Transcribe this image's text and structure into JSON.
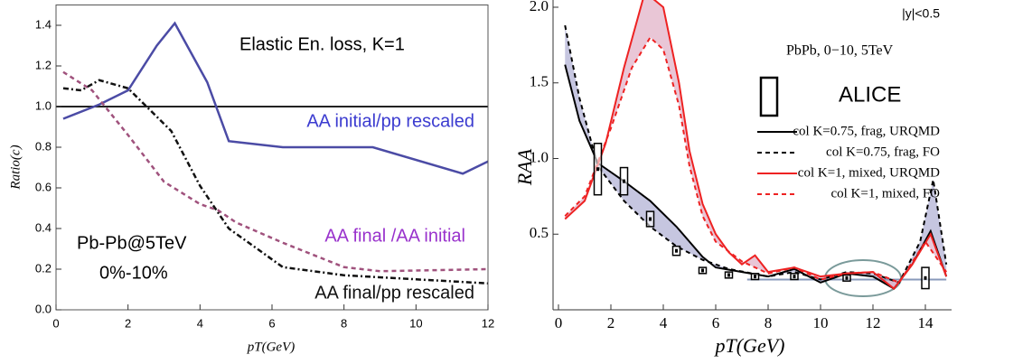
{
  "chart_data": [
    {
      "type": "line",
      "xlabel": "pT(GeV)",
      "ylabel": "Ratio(c)",
      "annotations": [
        "Elastic En. loss, K=1",
        "Pb-Pb@5TeV",
        "0%-10%"
      ],
      "xlim": [
        0,
        12
      ],
      "ylim": [
        0,
        1.5
      ],
      "xticks": [
        0,
        2,
        4,
        6,
        8,
        10,
        12
      ],
      "yticks": [
        {
          "value": 0,
          "label": "0.0"
        },
        0.2,
        0.4,
        0.6,
        0.8,
        {
          "value": 1,
          "label": "1.0"
        },
        1.2,
        1.4
      ],
      "hline": 1,
      "series": [
        {
          "name": "AA initial/pp rescaled",
          "color": "#4b4ba5",
          "label_color": "#3c3cd0",
          "linestyle": "solid",
          "x": [
            0.2,
            1.2,
            2,
            2.8,
            3.3,
            4.2,
            4.8,
            6.3,
            8.8,
            11.3,
            12
          ],
          "values": [
            0.94,
            1.01,
            1.08,
            1.3,
            1.41,
            1.12,
            0.83,
            0.8,
            0.8,
            0.67,
            0.73
          ]
        },
        {
          "name": "AA final /AA initial",
          "color": "#a0527d",
          "label_color": "#9932cc",
          "linestyle": "dashed",
          "x": [
            0.2,
            1,
            2,
            3,
            4,
            4.5,
            5,
            6.3,
            8,
            9,
            12
          ],
          "values": [
            1.17,
            1.08,
            0.86,
            0.63,
            0.52,
            0.49,
            0.43,
            0.33,
            0.21,
            0.19,
            0.2
          ]
        },
        {
          "name": "AA final/pp rescaled",
          "color": "#111111",
          "label_color": "#111111",
          "linestyle": "dashdot",
          "x": [
            0.2,
            0.7,
            1.2,
            2,
            3.2,
            4,
            4.8,
            6.3,
            8,
            10,
            12
          ],
          "values": [
            1.09,
            1.08,
            1.13,
            1.09,
            0.88,
            0.61,
            0.4,
            0.21,
            0.17,
            0.15,
            0.13
          ]
        }
      ]
    },
    {
      "type": "line",
      "xlabel": "pT(GeV)",
      "ylabel": "RAA",
      "annotations": [
        "|y|<0.5",
        "PbPb, 0−10, 5TeV"
      ],
      "xlim": [
        0,
        15
      ],
      "ylim": [
        0,
        2
      ],
      "xticks": [
        0,
        2,
        4,
        6,
        8,
        10,
        12,
        14
      ],
      "yticks": [
        0.5,
        {
          "value": 1,
          "label": "1.0"
        },
        1.5,
        {
          "value": 2,
          "label": "2.0"
        }
      ],
      "reference_line": {
        "y": 0.2,
        "x": [
          7.2,
          14.8
        ],
        "color": "#8899bb"
      },
      "bands": [
        {
          "series": [
            0,
            1
          ],
          "color": "#b3b3d6"
        },
        {
          "series": [
            2,
            3
          ],
          "color": "#e2b3c8"
        }
      ],
      "series": [
        {
          "name": "col K=0.75, frag, URQMD",
          "color": "#000000",
          "linestyle": "solid",
          "x": [
            0.25,
            0.8,
            1.5,
            2.5,
            3.5,
            4.5,
            5.5,
            6,
            7,
            8,
            9,
            10,
            11,
            12,
            12.8,
            13.5,
            14.2,
            14.8
          ],
          "values": [
            1.62,
            1.25,
            0.97,
            0.85,
            0.72,
            0.55,
            0.35,
            0.28,
            0.25,
            0.22,
            0.27,
            0.18,
            0.24,
            0.22,
            0.14,
            0.3,
            0.52,
            0.22
          ]
        },
        {
          "name": "col K=0.75, frag, FO",
          "color": "#000000",
          "linestyle": "dashed",
          "x": [
            0.25,
            0.8,
            1.5,
            2.5,
            3.5,
            4.5,
            5.5,
            6.5,
            8,
            9,
            10,
            11,
            12,
            13,
            13.8,
            14.3,
            14.8
          ],
          "values": [
            1.88,
            1.4,
            0.95,
            0.72,
            0.55,
            0.42,
            0.33,
            0.27,
            0.22,
            0.25,
            0.2,
            0.25,
            0.24,
            0.18,
            0.45,
            0.86,
            0.3
          ]
        },
        {
          "name": "col K=1, mixed, URQMD",
          "color": "#ee2222",
          "linestyle": "solid",
          "x": [
            0.25,
            1,
            1.8,
            2.5,
            3.3,
            4,
            4.6,
            5,
            5.5,
            6,
            6.5,
            7,
            7.5,
            8,
            9,
            10,
            11,
            12,
            12.8,
            13.5,
            14.2,
            14.8
          ],
          "values": [
            0.6,
            0.72,
            1.1,
            1.6,
            2.1,
            2.0,
            1.5,
            1.05,
            0.7,
            0.5,
            0.38,
            0.3,
            0.36,
            0.25,
            0.28,
            0.22,
            0.24,
            0.25,
            0.14,
            0.3,
            0.5,
            0.22
          ]
        },
        {
          "name": "col K=1, mixed, FO",
          "color": "#ee2222",
          "linestyle": "dashed",
          "x": [
            0.25,
            1,
            2,
            2.8,
            3.5,
            4,
            4.6,
            5,
            5.5,
            6,
            7,
            8,
            9,
            10,
            11,
            12,
            13,
            14,
            14.8
          ],
          "values": [
            0.62,
            0.75,
            1.2,
            1.6,
            1.8,
            1.72,
            1.35,
            0.95,
            0.62,
            0.45,
            0.32,
            0.24,
            0.28,
            0.2,
            0.24,
            0.25,
            0.18,
            0.45,
            0.25
          ]
        }
      ],
      "boxes": {
        "name": "ALICE",
        "x": [
          1.5,
          2.5,
          3.5,
          4.5,
          5.5,
          6.5,
          7.5,
          9,
          11,
          14
        ],
        "values": [
          0.93,
          0.85,
          0.6,
          0.39,
          0.26,
          0.23,
          0.22,
          0.22,
          0.21,
          0.21
        ],
        "errors": [
          0.17,
          0.09,
          0.05,
          0.03,
          0.02,
          0.02,
          0.02,
          0.02,
          0.02,
          0.07
        ]
      }
    }
  ]
}
